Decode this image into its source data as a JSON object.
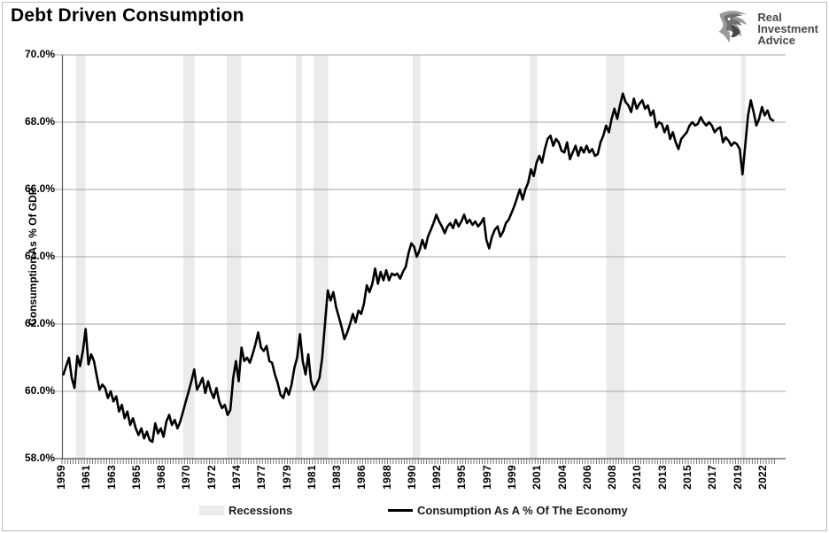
{
  "page": {
    "title": "Debt Driven Consumption"
  },
  "logo": {
    "lines": [
      "Real",
      "Investment",
      "Advice"
    ]
  },
  "colors": {
    "line": "#000000",
    "recession_band": "#ebebeb",
    "gridline": "#a6a6a6",
    "axis": "#595959",
    "minor_tick": "#404040",
    "logo_gray": "#4a4a4a"
  },
  "chart_data": {
    "type": "line",
    "title": "Debt Driven Consumption",
    "xlabel": "",
    "ylabel": "Consumption As % Of GDP",
    "ylim": [
      58,
      70
    ],
    "xlim": [
      1959,
      2024
    ],
    "grid": "horizontal",
    "yticks": [
      {
        "value": 70,
        "label": "70.0%"
      },
      {
        "value": 68,
        "label": "68.0%"
      },
      {
        "value": 66,
        "label": "66.0%"
      },
      {
        "value": 64,
        "label": "64.0%"
      },
      {
        "value": 62,
        "label": "62.0%"
      },
      {
        "value": 60,
        "label": "60.0%"
      },
      {
        "value": 58,
        "label": "58.0%"
      }
    ],
    "xtick_start_year": 1959,
    "xtick_interval_years": 2.25,
    "xtick_labels": [
      "1959",
      "1961",
      "1963",
      "1965",
      "1968",
      "1970",
      "1972",
      "1974",
      "1977",
      "1979",
      "1981",
      "1983",
      "1986",
      "1988",
      "1990",
      "1992",
      "1995",
      "1997",
      "1999",
      "2001",
      "2004",
      "2006",
      "2008",
      "2010",
      "2013",
      "2015",
      "2017",
      "2019",
      "2022"
    ],
    "legend": {
      "position": "bottom",
      "entries": [
        {
          "label": "Recessions",
          "type": "area",
          "color": "#ebebeb"
        },
        {
          "label": "Consumption As A % Of The Economy",
          "type": "line",
          "color": "#000000"
        }
      ]
    },
    "recessions": [
      [
        1960.25,
        1961.1
      ],
      [
        1969.9,
        1970.9
      ],
      [
        1973.8,
        1975.1
      ],
      [
        1980.0,
        1980.55
      ],
      [
        1981.6,
        1982.9
      ],
      [
        1990.5,
        1991.2
      ],
      [
        2001.0,
        2001.7
      ],
      [
        2007.9,
        2009.5
      ],
      [
        2020.0,
        2020.4
      ]
    ],
    "series": [
      {
        "name": "Consumption As A % Of The Economy",
        "color": "#000000",
        "start_year": 1959,
        "frequency": "quarterly",
        "values": [
          60.5,
          60.75,
          61.0,
          60.4,
          60.1,
          61.05,
          60.75,
          61.2,
          61.85,
          60.8,
          61.1,
          60.9,
          60.45,
          60.05,
          60.2,
          60.1,
          59.8,
          60.0,
          59.7,
          59.85,
          59.4,
          59.6,
          59.2,
          59.4,
          59.0,
          59.2,
          58.9,
          58.7,
          58.9,
          58.6,
          58.8,
          58.55,
          58.5,
          59.05,
          58.75,
          58.9,
          58.65,
          59.1,
          59.3,
          59.0,
          59.15,
          58.9,
          59.1,
          59.4,
          59.7,
          60.0,
          60.3,
          60.65,
          60.05,
          60.2,
          60.4,
          59.95,
          60.3,
          60.0,
          59.8,
          60.1,
          59.7,
          59.5,
          59.6,
          59.3,
          59.45,
          60.4,
          60.9,
          60.3,
          61.3,
          60.9,
          61.0,
          60.85,
          61.1,
          61.4,
          61.75,
          61.3,
          61.2,
          61.35,
          60.9,
          60.85,
          60.5,
          60.25,
          59.9,
          59.8,
          60.1,
          59.9,
          60.2,
          60.7,
          61.0,
          61.7,
          60.9,
          60.5,
          61.1,
          60.3,
          60.05,
          60.2,
          60.4,
          61.0,
          62.0,
          63.0,
          62.7,
          62.95,
          62.5,
          62.2,
          61.9,
          61.55,
          61.75,
          62.0,
          62.3,
          62.05,
          62.4,
          62.3,
          62.6,
          63.15,
          62.95,
          63.2,
          63.65,
          63.2,
          63.55,
          63.3,
          63.6,
          63.3,
          63.5,
          63.45,
          63.5,
          63.35,
          63.55,
          63.7,
          64.1,
          64.4,
          64.3,
          64.0,
          64.2,
          64.5,
          64.25,
          64.6,
          64.8,
          65.0,
          65.25,
          65.05,
          64.9,
          64.7,
          64.9,
          65.0,
          64.85,
          65.1,
          64.9,
          65.05,
          65.25,
          65.0,
          65.1,
          64.95,
          65.05,
          64.9,
          65.0,
          65.15,
          64.5,
          64.25,
          64.6,
          64.8,
          64.9,
          64.6,
          64.75,
          65.0,
          65.1,
          65.3,
          65.5,
          65.75,
          66.0,
          65.7,
          66.0,
          66.2,
          66.6,
          66.4,
          66.8,
          67.0,
          66.8,
          67.2,
          67.5,
          67.6,
          67.3,
          67.5,
          67.4,
          67.15,
          67.1,
          67.4,
          66.9,
          67.1,
          67.3,
          67.0,
          67.25,
          67.1,
          67.3,
          67.1,
          67.2,
          67.0,
          67.05,
          67.4,
          67.6,
          67.9,
          67.7,
          68.1,
          68.4,
          68.1,
          68.5,
          68.85,
          68.6,
          68.5,
          68.3,
          68.7,
          68.4,
          68.55,
          68.65,
          68.4,
          68.5,
          68.2,
          68.35,
          67.85,
          68.0,
          67.95,
          67.7,
          67.9,
          67.5,
          67.7,
          67.4,
          67.2,
          67.5,
          67.6,
          67.7,
          67.9,
          68.0,
          67.9,
          67.95,
          68.15,
          68.0,
          67.9,
          68.0,
          67.9,
          67.7,
          67.8,
          67.85,
          67.4,
          67.55,
          67.45,
          67.3,
          67.4,
          67.35,
          67.2,
          66.45,
          67.3,
          68.2,
          68.65,
          68.3,
          67.9,
          68.1,
          68.45,
          68.2,
          68.35,
          68.1,
          68.05
        ]
      }
    ]
  }
}
